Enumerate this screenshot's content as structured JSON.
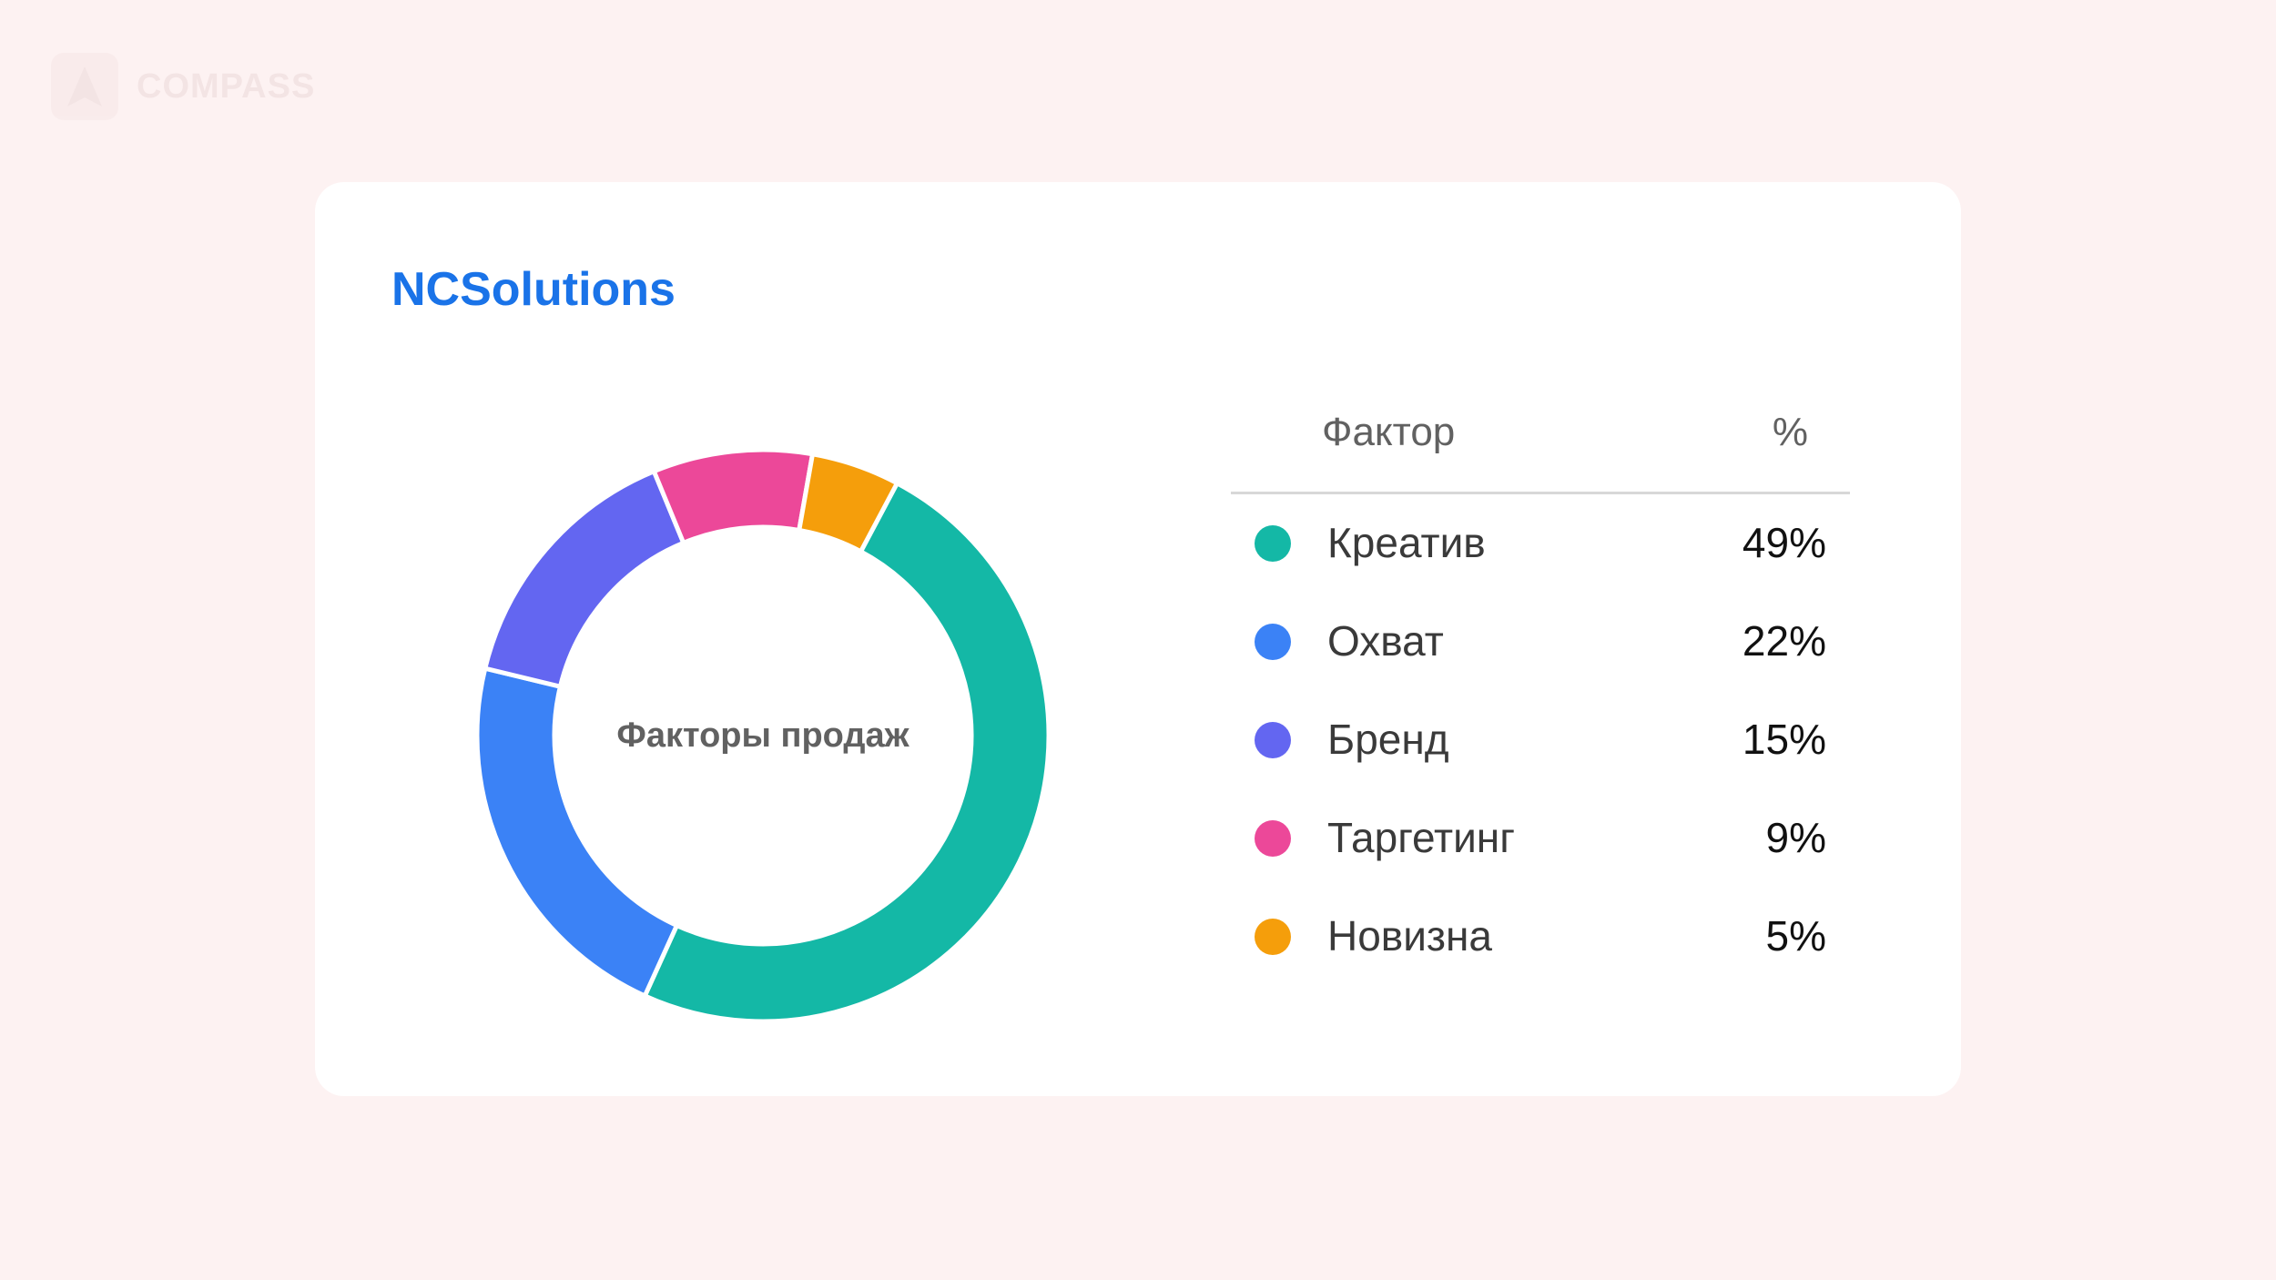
{
  "brand": {
    "name": "COMPASS",
    "icon": "compass-logo-icon"
  },
  "card": {
    "title": "NCSolutions"
  },
  "table": {
    "header_factor": "Фактор",
    "header_pct": "%"
  },
  "colors": {
    "background": "#fdf2f2",
    "title": "#1a73e8",
    "center_text": "#616161",
    "separator": "#ffffff"
  },
  "chart_data": {
    "type": "pie",
    "title": "",
    "center_label": "Факторы продаж",
    "categories": [
      "Креатив",
      "Охват",
      "Бренд",
      "Таргетинг",
      "Новизна"
    ],
    "values": [
      49,
      22,
      15,
      9,
      5
    ],
    "value_labels": [
      "49%",
      "22%",
      "15%",
      "9%",
      "5%"
    ],
    "colors": [
      "#14b8a6",
      "#3b82f6",
      "#6366f1",
      "#ec4899",
      "#f59e0b"
    ],
    "donut": true,
    "legend_placement": "right"
  }
}
